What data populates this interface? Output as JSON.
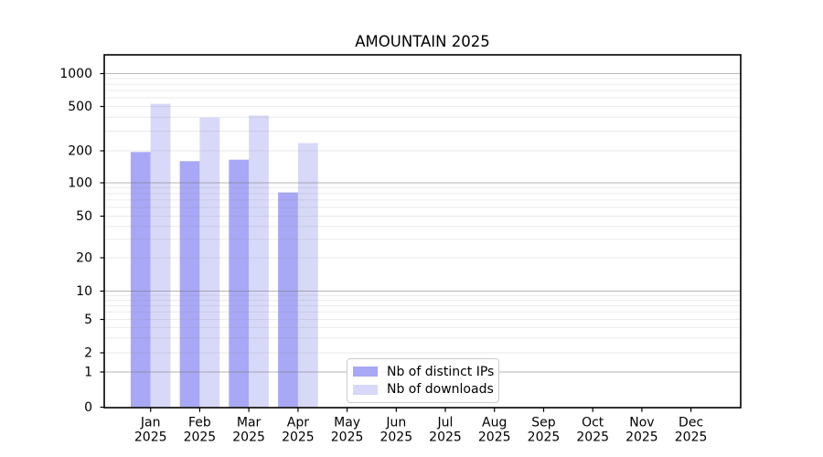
{
  "chart_data": {
    "type": "bar",
    "title": "AMOUNTAIN 2025",
    "categories": [
      "Jan",
      "Feb",
      "Mar",
      "Apr",
      "May",
      "Jun",
      "Jul",
      "Aug",
      "Sep",
      "Oct",
      "Nov",
      "Dec"
    ],
    "x_tick_second_line": "2025",
    "series": [
      {
        "name": "Nb of distinct IPs",
        "color": "#a8a8f6",
        "values": [
          195,
          160,
          165,
          82,
          null,
          null,
          null,
          null,
          null,
          null,
          null,
          null
        ]
      },
      {
        "name": "Nb of downloads",
        "color": "#d8d8f9",
        "values": [
          530,
          398,
          415,
          235,
          null,
          null,
          null,
          null,
          null,
          null,
          null,
          null
        ]
      }
    ],
    "y_axis": {
      "scale": "symlog",
      "tick_labels": [
        0,
        1,
        2,
        5,
        10,
        20,
        50,
        100,
        200,
        500,
        1000
      ],
      "range": [
        0,
        1400
      ]
    },
    "grid": {
      "enabled": true,
      "axis": "y",
      "major_lines_at": [
        1,
        10,
        100,
        1000
      ],
      "minor_lines": "2-9 per decade"
    },
    "legend": {
      "location": "lower center inside plot"
    }
  },
  "colors": {
    "background": "#ffffff",
    "spine": "#000000",
    "grid_major": "#c6c6c6",
    "grid_minor": "#ececec",
    "legend_border": "#cccccc",
    "text": "#000000"
  }
}
